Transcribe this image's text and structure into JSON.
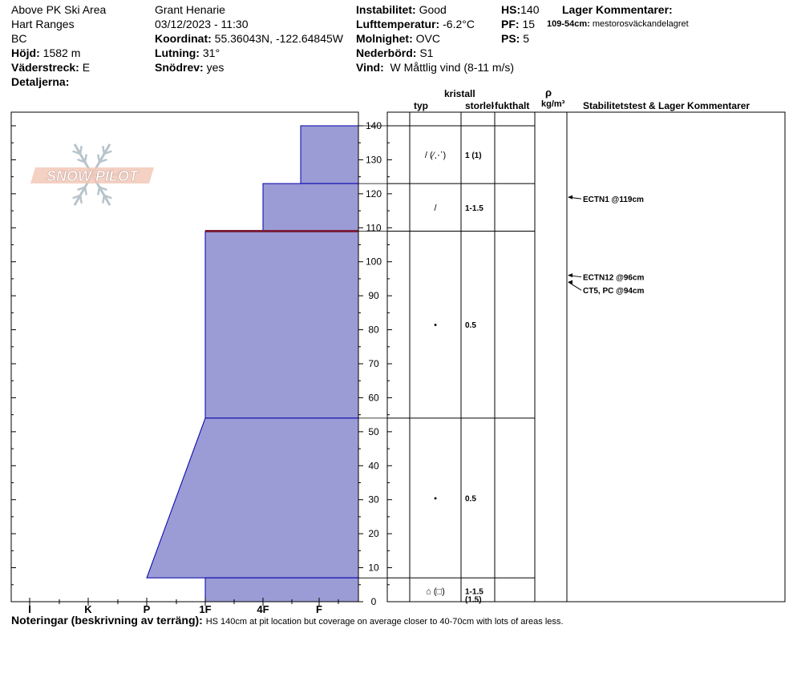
{
  "header": {
    "location": "Above PK Ski Area",
    "range": "Hart Ranges",
    "region": "BC",
    "elevation_label": "Höjd:",
    "elevation": "1582 m",
    "aspect_label": "Väderstreck:",
    "aspect": "E",
    "details_label": "Detaljerna:",
    "observer": "Grant Henarie",
    "datetime": "03/12/2023 - 11:30",
    "coord_label": "Koordinat:",
    "coord": "55.36043N, -122.64845W",
    "slope_label": "Lutning:",
    "slope": "31°",
    "drift_label": "Snödrev:",
    "drift": "yes",
    "instability_label": "Instabilitet:",
    "instability": "Good",
    "airtemp_label": "Lufttemperatur:",
    "airtemp": "-6.2°C",
    "cloud_label": "Molnighet:",
    "cloud": "OVC",
    "precip_label": "Nederbörd:",
    "precip": "S1",
    "wind_label": "Vind:",
    "wind": "W Måttlig vind (8-11 m/s)",
    "hs_label": "HS:",
    "hs": "140",
    "pf_label": "PF:",
    "pf": "15",
    "ps_label": "PS:",
    "ps": "5",
    "layer_comments_label": "Lager Kommentarer:",
    "layer_comment_depth": "109-54cm:",
    "layer_comment_text": "mestorosväckandelagret"
  },
  "columns": {
    "crystal": "kristall",
    "type": "typ",
    "size": "storlek",
    "moisture": "fukthalt",
    "rho": "ρ",
    "density_unit": "kg/m³",
    "stability": "Stabilitetstest & Lager Kommentarer"
  },
  "logo_text": "SNOW PILOT",
  "notes_label": "Noteringar (beskrivning av terräng):",
  "notes": "HS 140cm at pit location but coverage on average closer to 40-70cm with lots of areas less.",
  "colors": {
    "layer_fill": "#9b9bd6",
    "layer_edge": "#0000aa",
    "weak_layer": "#7a1f3a",
    "frame": "#000000"
  },
  "chart_data": {
    "type": "snow_profile",
    "y_axis": {
      "label": "",
      "range": [
        0,
        140
      ],
      "ticks": [
        0,
        10,
        20,
        30,
        40,
        50,
        60,
        70,
        80,
        90,
        100,
        110,
        120,
        130,
        140
      ]
    },
    "hardness_scale": [
      "I",
      "K",
      "P",
      "1F",
      "4F",
      "F"
    ],
    "layers": [
      {
        "top": 140,
        "bottom": 123,
        "hardness_top": "4F-F",
        "hardness_bottom": "4F-F",
        "grain": "/ (⁄⋰)",
        "size": "1 (1)"
      },
      {
        "top": 123,
        "bottom": 109,
        "hardness_top": "4F",
        "hardness_bottom": "4F",
        "grain": "/",
        "size": "1-1.5"
      },
      {
        "top": 109,
        "bottom": 54,
        "hardness_top": "1F",
        "hardness_bottom": "1F",
        "grain": "•",
        "size": "0.5"
      },
      {
        "top": 54,
        "bottom": 7,
        "hardness_top": "1F",
        "hardness_bottom": "P",
        "grain": "•",
        "size": "0.5"
      },
      {
        "top": 7,
        "bottom": 0,
        "hardness_top": "1F",
        "hardness_bottom": "1F",
        "grain": "⌂ (□)",
        "size": "1-1.5 (1.5)"
      }
    ],
    "weak_layer_depth": 109,
    "tests": [
      {
        "depth": 119,
        "label": "ECTN1 @119cm"
      },
      {
        "depth": 96,
        "label": "ECTN12 @96cm"
      },
      {
        "depth": 94,
        "label": "CT5, PC @94cm"
      }
    ]
  }
}
